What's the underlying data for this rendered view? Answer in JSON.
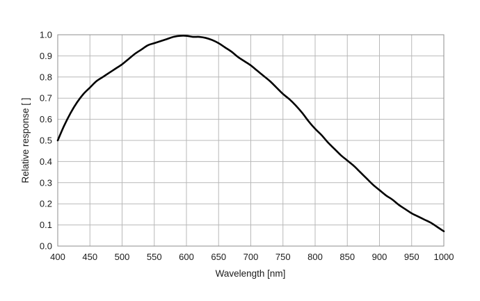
{
  "chart_data": {
    "type": "line",
    "title": "",
    "xlabel": "Wavelength [nm]",
    "ylabel": "Relative response [ ]",
    "xlim": [
      400,
      1000
    ],
    "ylim": [
      0.0,
      1.0
    ],
    "x_ticks": [
      400,
      450,
      500,
      550,
      600,
      650,
      700,
      750,
      800,
      850,
      900,
      950,
      1000
    ],
    "y_ticks": [
      0.0,
      0.1,
      0.2,
      0.3,
      0.4,
      0.5,
      0.6,
      0.7,
      0.8,
      0.9,
      1.0
    ],
    "x_tick_labels": [
      "400",
      "450",
      "500",
      "550",
      "600",
      "650",
      "700",
      "750",
      "800",
      "850",
      "900",
      "950",
      "1000"
    ],
    "y_tick_labels": [
      "0.0",
      "0.1",
      "0.2",
      "0.3",
      "0.4",
      "0.5",
      "0.6",
      "0.7",
      "0.8",
      "0.9",
      "1.0"
    ],
    "grid": true,
    "legend": "none",
    "series": [
      {
        "color": "#000000",
        "x": [
          400,
          410,
          420,
          430,
          440,
          450,
          460,
          470,
          480,
          490,
          500,
          510,
          520,
          530,
          540,
          550,
          560,
          570,
          580,
          590,
          600,
          610,
          620,
          630,
          640,
          650,
          660,
          670,
          680,
          690,
          700,
          710,
          720,
          730,
          740,
          750,
          760,
          770,
          780,
          790,
          800,
          810,
          820,
          830,
          840,
          850,
          860,
          870,
          880,
          890,
          900,
          910,
          920,
          930,
          940,
          950,
          960,
          970,
          980,
          990,
          1000
        ],
        "y": [
          0.5,
          0.57,
          0.63,
          0.68,
          0.72,
          0.75,
          0.78,
          0.8,
          0.82,
          0.84,
          0.86,
          0.885,
          0.91,
          0.93,
          0.95,
          0.96,
          0.97,
          0.98,
          0.99,
          0.995,
          0.995,
          0.99,
          0.99,
          0.985,
          0.975,
          0.96,
          0.94,
          0.92,
          0.895,
          0.875,
          0.855,
          0.83,
          0.805,
          0.78,
          0.75,
          0.72,
          0.695,
          0.665,
          0.63,
          0.59,
          0.555,
          0.525,
          0.49,
          0.46,
          0.43,
          0.405,
          0.38,
          0.35,
          0.32,
          0.29,
          0.265,
          0.24,
          0.22,
          0.195,
          0.175,
          0.155,
          0.14,
          0.125,
          0.11,
          0.09,
          0.07
        ]
      }
    ]
  }
}
